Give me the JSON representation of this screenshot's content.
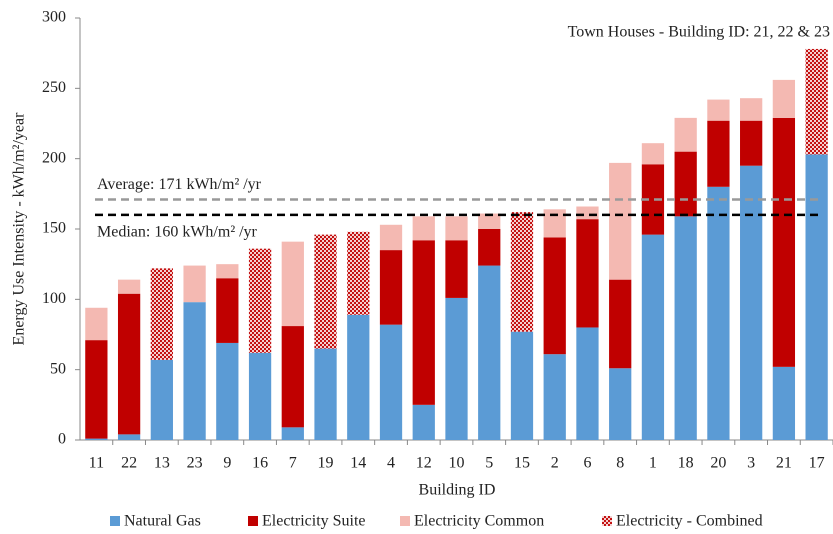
{
  "chart_data": {
    "type": "stacked-bar",
    "annotation": "Town Houses - Building ID: 21, 22 & 23",
    "x_label": "Building ID",
    "y_label": "Energy Use Intensity - kWh/m²/year",
    "categories": [
      "11",
      "22",
      "13",
      "23",
      "9",
      "16",
      "7",
      "19",
      "14",
      "4",
      "12",
      "10",
      "5",
      "15",
      "2",
      "6",
      "8",
      "1",
      "18",
      "20",
      "3",
      "21",
      "17"
    ],
    "series": [
      {
        "name": "Natural Gas",
        "color": "#5b9bd5",
        "values": [
          1,
          4,
          57,
          98,
          69,
          62,
          9,
          65,
          89,
          82,
          25,
          101,
          124,
          77,
          61,
          80,
          51,
          146,
          159,
          180,
          195,
          52,
          203
        ]
      },
      {
        "name": "Electricity Suite",
        "color": "#c00000",
        "values": [
          70,
          100,
          null,
          null,
          46,
          null,
          72,
          null,
          null,
          53,
          117,
          41,
          26,
          null,
          83,
          77,
          63,
          50,
          46,
          47,
          32,
          177,
          null
        ]
      },
      {
        "name": "Electricity Common",
        "color": "#f4b9b2",
        "values": [
          23,
          10,
          null,
          26,
          10,
          null,
          60,
          null,
          null,
          18,
          17,
          17,
          11,
          null,
          20,
          9,
          83,
          15,
          24,
          15,
          16,
          27,
          null
        ]
      },
      {
        "name": "Electricity - Combined",
        "color": "#c00000",
        "pattern": "dots",
        "values": [
          null,
          null,
          65,
          null,
          null,
          74,
          null,
          81,
          59,
          null,
          null,
          null,
          null,
          85,
          null,
          null,
          null,
          null,
          null,
          null,
          null,
          null,
          75
        ]
      }
    ],
    "reference_lines": [
      {
        "value": 171,
        "label": "Average: 171 kWh/m² /yr",
        "color": "#999999"
      },
      {
        "value": 160,
        "label": "Median: 160 kWh/m² /yr",
        "color": "#000000"
      }
    ],
    "ylim": [
      0,
      300
    ],
    "yticks": [
      0,
      50,
      100,
      150,
      200,
      250,
      300
    ]
  }
}
